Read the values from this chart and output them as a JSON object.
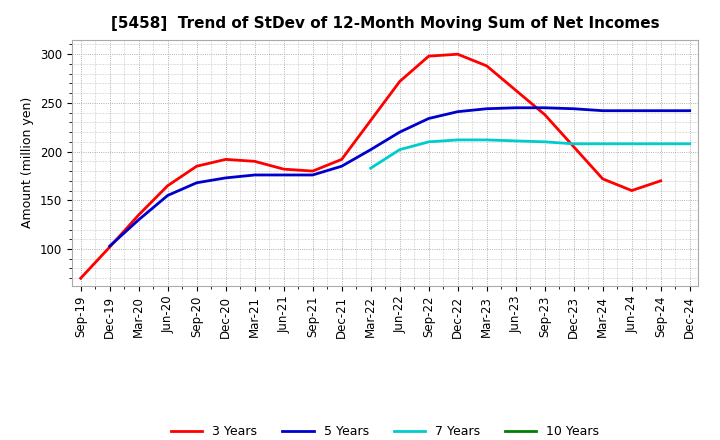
{
  "title": "[5458]  Trend of StDev of 12-Month Moving Sum of Net Incomes",
  "ylabel": "Amount (million yen)",
  "xlabels": [
    "Sep-19",
    "Dec-19",
    "Mar-20",
    "Jun-20",
    "Sep-20",
    "Dec-20",
    "Mar-21",
    "Jun-21",
    "Sep-21",
    "Dec-21",
    "Mar-22",
    "Jun-22",
    "Sep-22",
    "Dec-22",
    "Mar-23",
    "Jun-23",
    "Sep-23",
    "Dec-23",
    "Mar-24",
    "Jun-24",
    "Sep-24",
    "Dec-24"
  ],
  "ylim": [
    62,
    315
  ],
  "yticks": [
    100,
    150,
    200,
    250,
    300
  ],
  "series": {
    "3 Years": {
      "color": "#ff0000",
      "data_x": [
        0,
        1,
        2,
        3,
        4,
        5,
        6,
        7,
        8,
        9,
        10,
        11,
        12,
        13,
        14,
        15,
        16,
        17,
        18,
        19,
        20
      ],
      "data_y": [
        70,
        102,
        135,
        165,
        185,
        192,
        190,
        182,
        180,
        192,
        232,
        272,
        298,
        300,
        288,
        263,
        238,
        205,
        172,
        160,
        170
      ]
    },
    "5 Years": {
      "color": "#0000cc",
      "data_x": [
        1,
        2,
        3,
        4,
        5,
        6,
        7,
        8,
        9,
        10,
        11,
        12,
        13,
        14,
        15,
        16,
        17,
        18,
        19,
        20,
        21
      ],
      "data_y": [
        103,
        130,
        155,
        168,
        173,
        176,
        176,
        176,
        185,
        202,
        220,
        234,
        241,
        244,
        245,
        245,
        244,
        242,
        242,
        242,
        242
      ]
    },
    "7 Years": {
      "color": "#00cccc",
      "data_x": [
        10,
        11,
        12,
        13,
        14,
        15,
        16,
        17,
        18,
        19,
        20,
        21
      ],
      "data_y": [
        183,
        202,
        210,
        212,
        212,
        211,
        210,
        208,
        208,
        208,
        208,
        208
      ]
    },
    "10 Years": {
      "color": "#008000",
      "data_x": [],
      "data_y": []
    }
  },
  "legend_order": [
    "3 Years",
    "5 Years",
    "7 Years",
    "10 Years"
  ],
  "background_color": "#ffffff",
  "plot_bg_color": "#ffffff",
  "grid_color": "#999999",
  "title_fontsize": 11,
  "label_fontsize": 9,
  "tick_fontsize": 8.5,
  "linewidth": 2.0
}
